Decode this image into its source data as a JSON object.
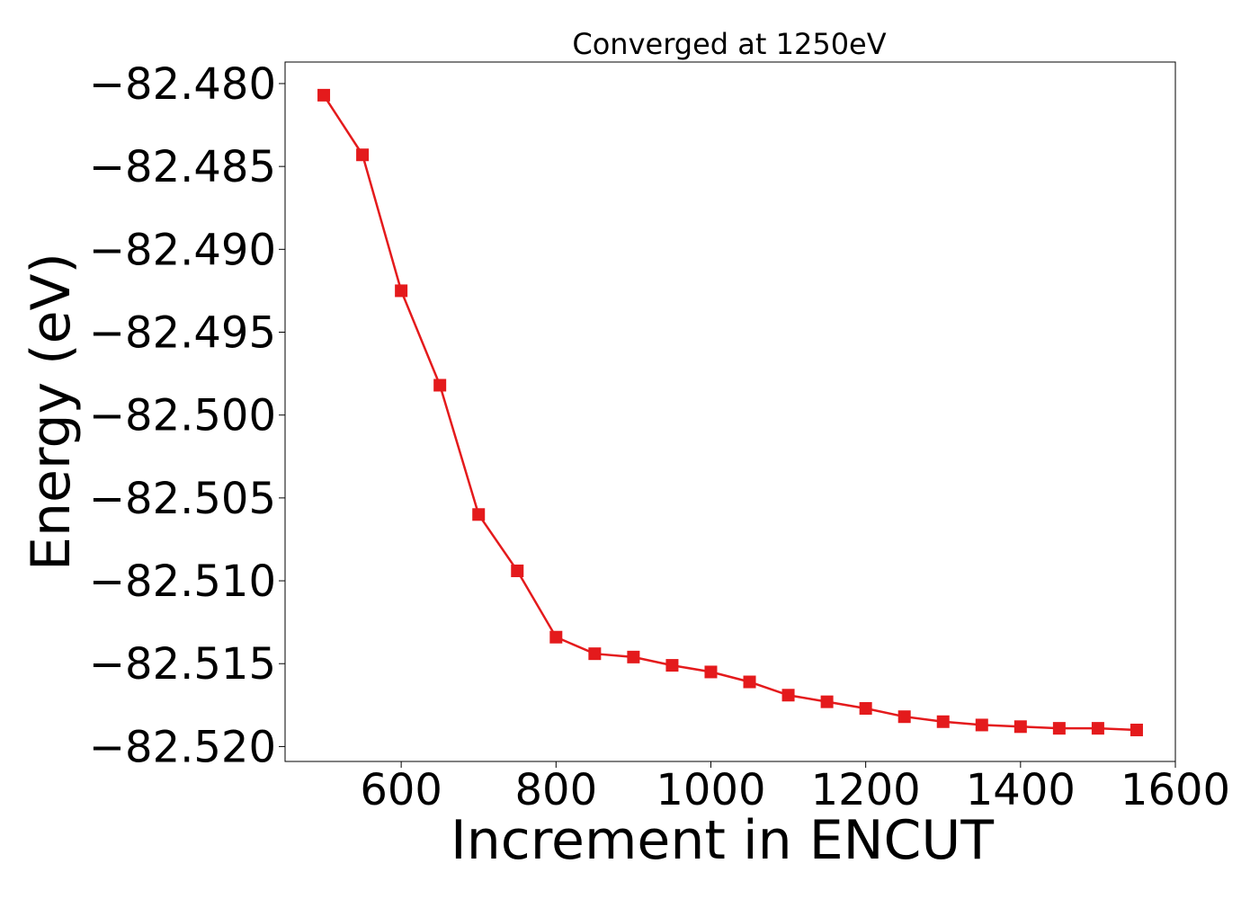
{
  "chart_data": {
    "type": "line",
    "title": "Converged at 1250eV",
    "xlabel": "Increment in ENCUT",
    "ylabel": "Energy (eV)",
    "xlim": [
      450,
      1600
    ],
    "ylim": [
      -82.5209,
      -82.4787
    ],
    "x_ticks": [
      600,
      800,
      1000,
      1200,
      1400,
      1600
    ],
    "y_ticks": [
      -82.48,
      -82.485,
      -82.49,
      -82.495,
      -82.5,
      -82.505,
      -82.51,
      -82.515,
      -82.52
    ],
    "y_tick_labels": [
      "−82.480",
      "−82.485",
      "−82.490",
      "−82.495",
      "−82.500",
      "−82.505",
      "−82.510",
      "−82.515",
      "−82.520"
    ],
    "grid": false,
    "series": [
      {
        "color": "#e41a1c",
        "marker": "square",
        "x": [
          500,
          550,
          600,
          650,
          700,
          750,
          800,
          850,
          900,
          950,
          1000,
          1050,
          1100,
          1150,
          1200,
          1250,
          1300,
          1350,
          1400,
          1450,
          1500,
          1550
        ],
        "y": [
          -82.4807,
          -82.4843,
          -82.4925,
          -82.4982,
          -82.506,
          -82.5094,
          -82.5134,
          -82.5144,
          -82.5146,
          -82.5151,
          -82.5155,
          -82.5161,
          -82.5169,
          -82.5173,
          -82.5177,
          -82.5182,
          -82.5185,
          -82.5187,
          -82.5188,
          -82.5189,
          -82.5189,
          -82.519
        ]
      }
    ]
  }
}
